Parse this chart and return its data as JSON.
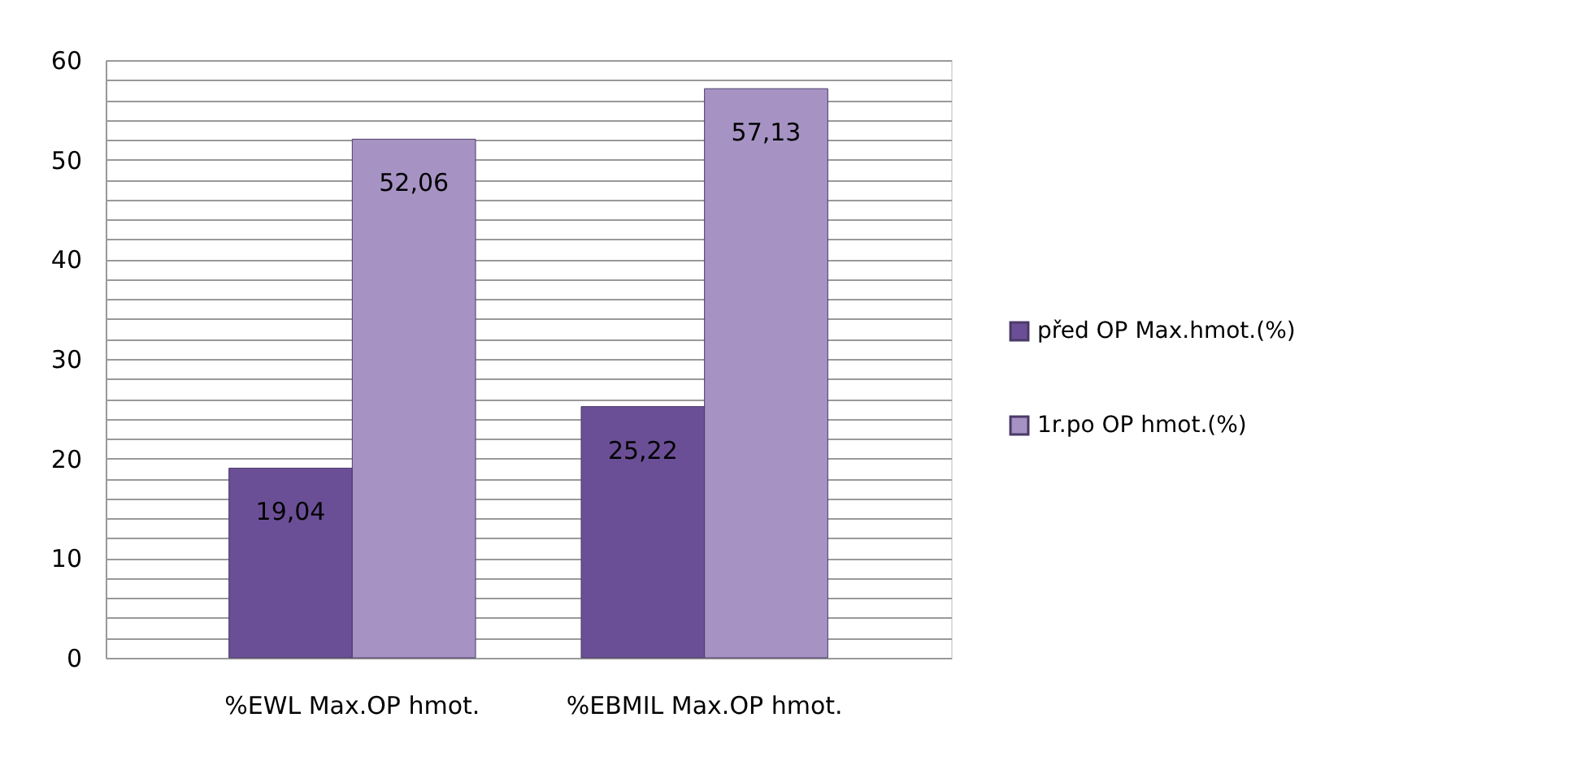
{
  "chart_data": {
    "type": "bar",
    "categories": [
      "%EWL Max.OP hmot.",
      "%EBMIL Max.OP hmot."
    ],
    "series": [
      {
        "name": "před OP Max.hmot.(%)",
        "color": "#6b4f96",
        "values": [
          19.04,
          25.22
        ],
        "value_labels": [
          "19,04",
          "25,22"
        ]
      },
      {
        "name": "1r.po OP hmot.(%)",
        "color": "#a693c4",
        "values": [
          52.06,
          57.13
        ],
        "value_labels": [
          "52,06",
          "57,13"
        ]
      }
    ],
    "ylim": [
      0,
      60
    ],
    "yticks": [
      0,
      {
        "value": 2,
        "label": null
      },
      {
        "value": 4,
        "label": null
      },
      {
        "value": 6,
        "label": null
      },
      {
        "value": 8,
        "label": null
      },
      10,
      {
        "value": 12,
        "label": null
      },
      {
        "value": 14,
        "label": null
      },
      {
        "value": 16,
        "label": null
      },
      {
        "value": 18,
        "label": null
      },
      20,
      {
        "value": 22,
        "label": null
      },
      {
        "value": 24,
        "label": null
      },
      {
        "value": 26,
        "label": null
      },
      {
        "value": 28,
        "label": null
      },
      30,
      {
        "value": 32,
        "label": null
      },
      {
        "value": 34,
        "label": null
      },
      {
        "value": 36,
        "label": null
      },
      {
        "value": 38,
        "label": null
      },
      40,
      {
        "value": 42,
        "label": null
      },
      {
        "value": 44,
        "label": null
      },
      {
        "value": 46,
        "label": null
      },
      {
        "value": 48,
        "label": null
      },
      50,
      {
        "value": 52,
        "label": null
      },
      {
        "value": 54,
        "label": null
      },
      {
        "value": 56,
        "label": null
      },
      {
        "value": 58,
        "label": null
      },
      60
    ],
    "grid": true,
    "legend": "right"
  }
}
